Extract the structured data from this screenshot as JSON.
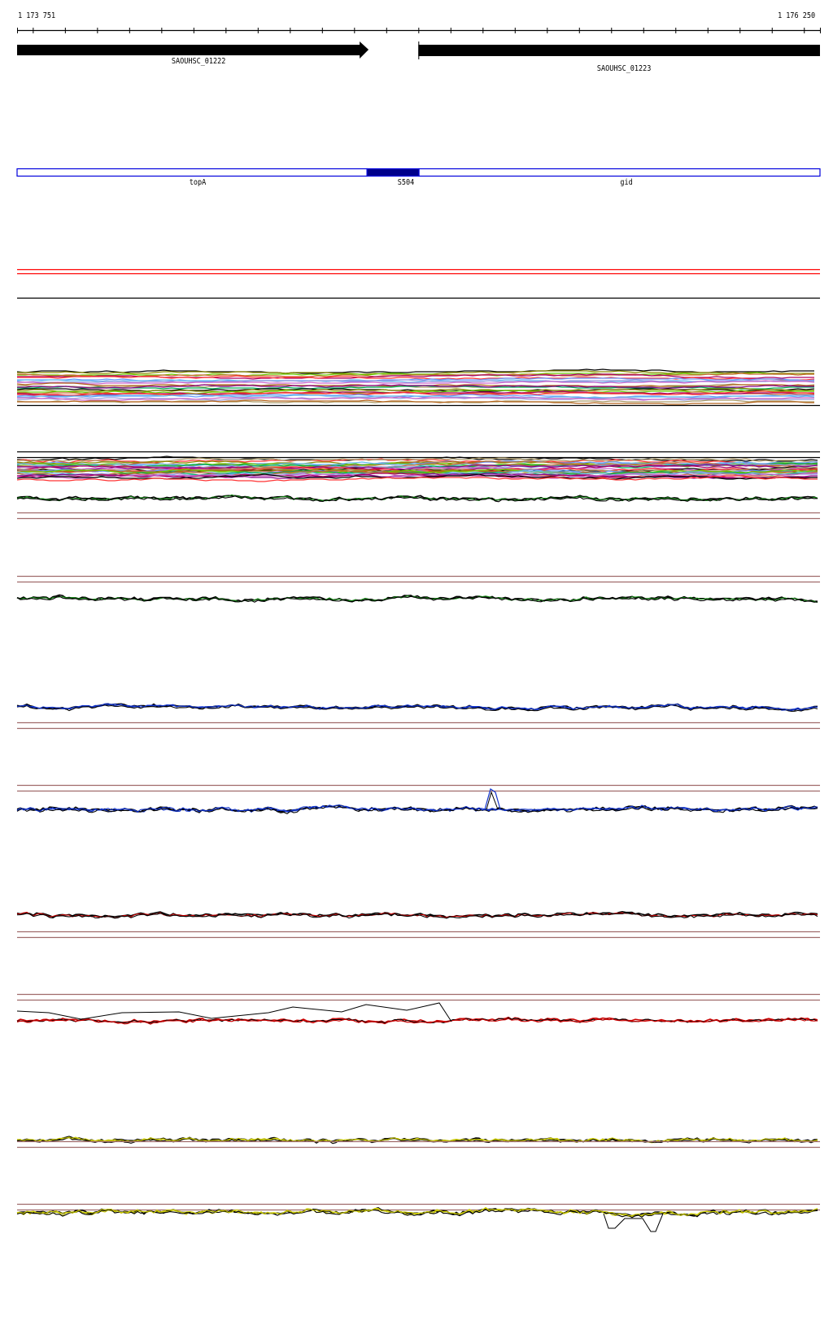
{
  "ruler": {
    "start_label": "1 173 751",
    "end_label": "1 176 250",
    "start": 1173751,
    "end": 1176250,
    "tick_interval": 100
  },
  "genes": [
    {
      "label": "SAOUHSC_01222",
      "start": 1173751,
      "end": 1174845,
      "strand": "+"
    },
    {
      "label": "SAOUHSC_01223",
      "start": 1175000,
      "end": 1176250,
      "strand": "-"
    }
  ],
  "annotations": [
    {
      "label": "topA",
      "start": 1173751,
      "end": 1174840,
      "fill": "#ffffff",
      "stroke": "#0000dd"
    },
    {
      "label": "S504",
      "start": 1174840,
      "end": 1175002,
      "fill": "#00008b",
      "stroke": "#0000dd"
    },
    {
      "label": "gid",
      "start": 1175002,
      "end": 1176250,
      "fill": "#ffffff",
      "stroke": "#0000dd"
    }
  ],
  "colors": {
    "gene": "#000000",
    "red_guide": "#ff0000",
    "brown_guide": "#a06b6b",
    "multi_series": [
      "#000000",
      "#8b8b00",
      "#66cc00",
      "#cc6633",
      "#aa0066",
      "#ff3333",
      "#6699ff",
      "#66bbee",
      "#9999dd",
      "#cc66cc",
      "#aa9966",
      "#b5651d",
      "#00aa55",
      "#880088"
    ],
    "green": "#118811",
    "blue": "#1133cc",
    "red": "#cc0000",
    "yellow": "#c8c800"
  }
}
